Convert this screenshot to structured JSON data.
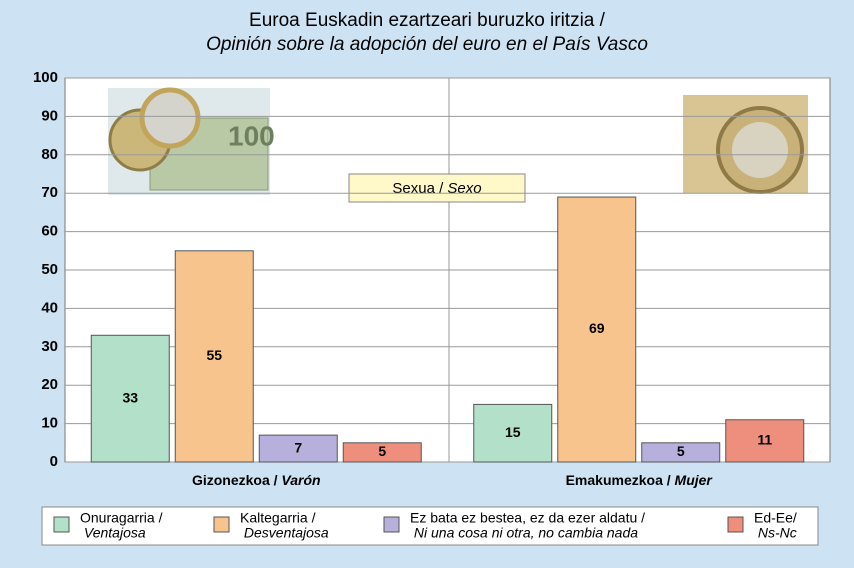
{
  "chart_data": {
    "type": "bar",
    "title": "Euroa Euskadin ezartzeari buruzko iritzia /",
    "subtitle": "Opinión sobre la adopción del euro en el País Vasco",
    "annotation": "Sexua / Sexo",
    "categories": [
      "Gizonezkoa / Varón",
      "Emakumezkoa / Mujer"
    ],
    "series": [
      {
        "name": "Onuragarria / Ventajosa",
        "color": "#b3e0c8",
        "values": [
          33,
          15
        ]
      },
      {
        "name": "Kaltegarria / Desventajosa",
        "color": "#f8c48e",
        "values": [
          55,
          69
        ]
      },
      {
        "name": "Ez bata ez bestea, ez da ezer aldatu / Ni una cosa ni otra, no cambia nada",
        "color": "#b8b0dc",
        "values": [
          7,
          5
        ]
      },
      {
        "name": "Ed-Ee/ Ns-Nc",
        "color": "#ee8f7e",
        "values": [
          5,
          11
        ]
      }
    ],
    "ylim": [
      0,
      100
    ],
    "yticks": [
      0,
      10,
      20,
      30,
      40,
      50,
      60,
      70,
      80,
      90,
      100
    ],
    "grid": true
  }
}
